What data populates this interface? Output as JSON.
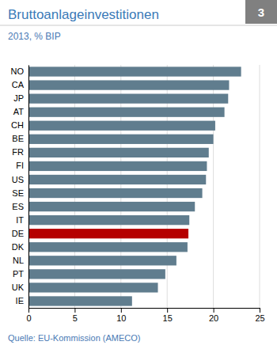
{
  "chart_data": {
    "type": "bar",
    "orientation": "horizontal",
    "title": "Bruttoanlageinvestitionen",
    "subtitle": "2013, % BIP",
    "annotations": [
      "3",
      "Quelle: EU-Kommission (AMECO)"
    ],
    "categories": [
      "NO",
      "CA",
      "JP",
      "AT",
      "CH",
      "BE",
      "FR",
      "FI",
      "US",
      "SE",
      "ES",
      "IT",
      "DE",
      "DK",
      "NL",
      "PT",
      "UK",
      "IE"
    ],
    "values": [
      23.0,
      21.7,
      21.6,
      21.2,
      20.2,
      20.0,
      19.5,
      19.3,
      19.2,
      18.8,
      18.0,
      17.4,
      17.3,
      17.2,
      16.0,
      14.8,
      14.0,
      11.2
    ],
    "colors": [
      "#607d8e",
      "#607d8e",
      "#607d8e",
      "#607d8e",
      "#607d8e",
      "#607d8e",
      "#607d8e",
      "#607d8e",
      "#607d8e",
      "#607d8e",
      "#607d8e",
      "#607d8e",
      "#b50000",
      "#607d8e",
      "#607d8e",
      "#607d8e",
      "#607d8e",
      "#607d8e"
    ],
    "xlim": [
      0,
      25
    ],
    "xticks": [
      0,
      5,
      10,
      15,
      20,
      25
    ],
    "grid": true
  }
}
